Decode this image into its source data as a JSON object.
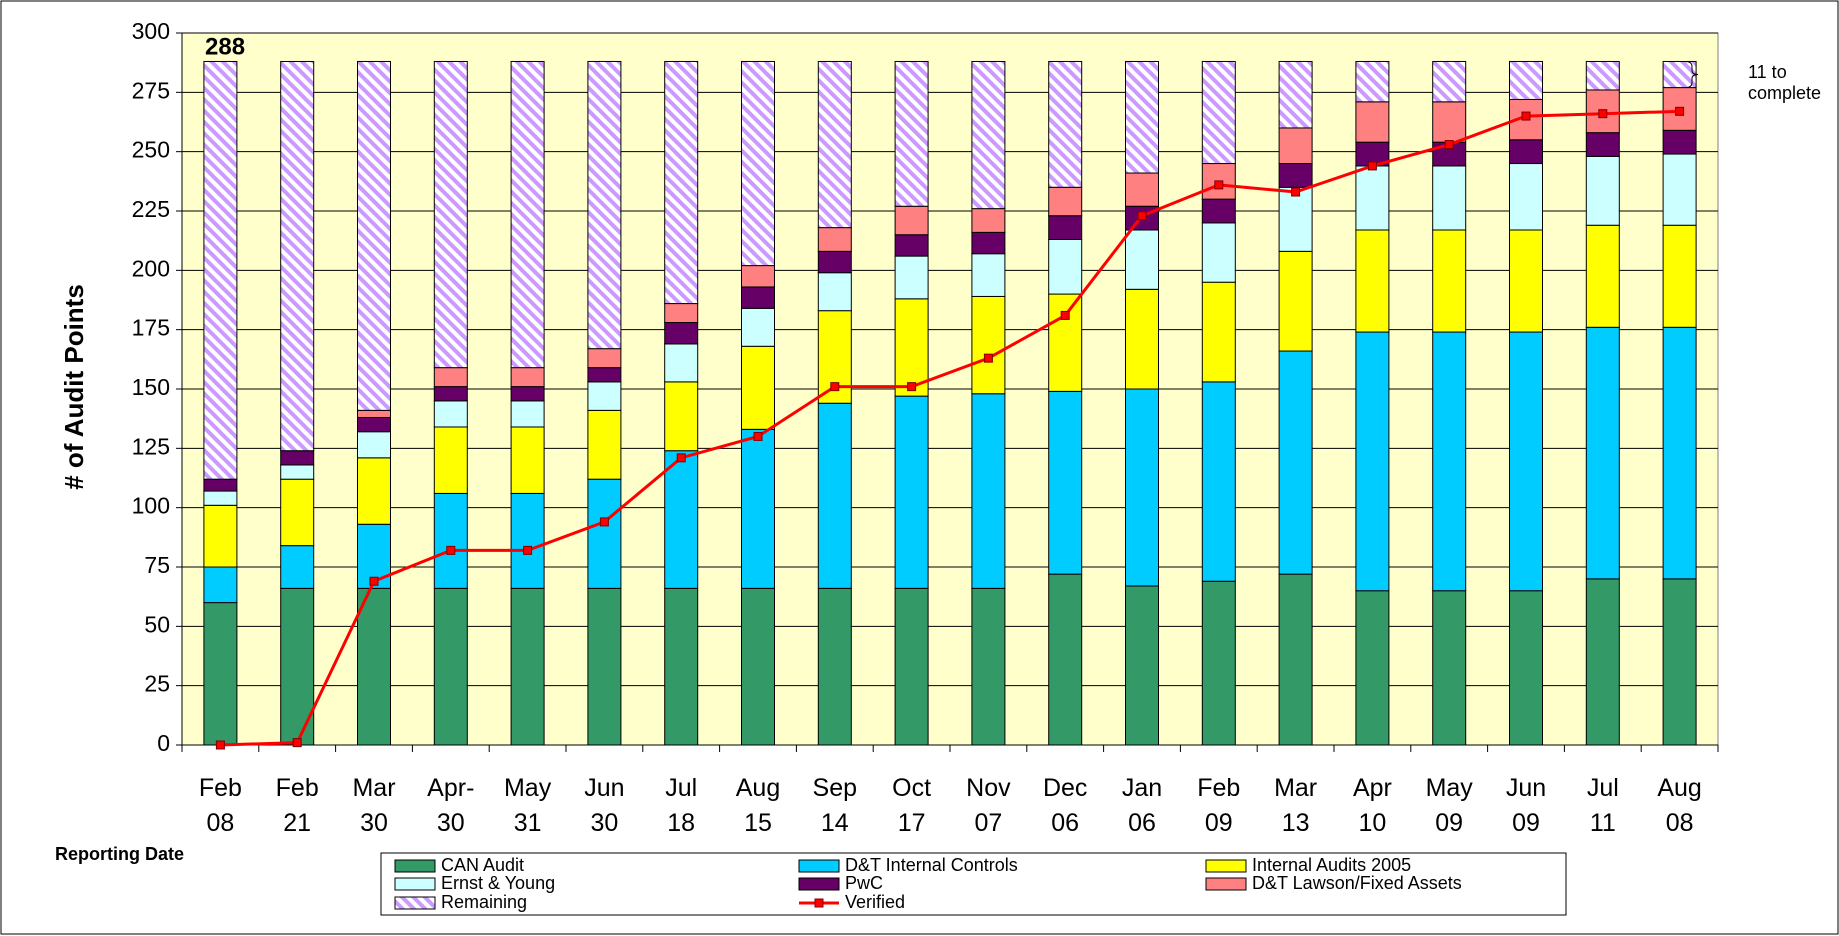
{
  "chart_data": {
    "type": "bar",
    "stacked": true,
    "y_label": "# of Audit Points",
    "x_label": "Reporting Date",
    "annotations": [
      "288",
      "11 to\ncomplete"
    ],
    "categories": [
      "Feb\n08",
      "Feb\n21",
      "Mar\n30",
      "Apr-\n30",
      "May\n31",
      "Jun\n30",
      "Jul\n18",
      "Aug\n15",
      "Sep\n14",
      "Oct\n17",
      "Nov\n07",
      "Dec\n06",
      "Jan\n06",
      "Feb\n09",
      "Mar\n13",
      "Apr\n10",
      "May\n09",
      "Jun\n09",
      "Jul\n11",
      "Aug\n08"
    ],
    "series": [
      {
        "name": "CAN Audit",
        "color": "#339966",
        "values": [
          60,
          66,
          66,
          66,
          66,
          66,
          66,
          66,
          66,
          66,
          66,
          72,
          67,
          69,
          72,
          65,
          65,
          65,
          70,
          70
        ]
      },
      {
        "name": "D&T Internal Controls",
        "color": "#00ccff",
        "values": [
          15,
          18,
          27,
          40,
          40,
          46,
          58,
          67,
          78,
          81,
          82,
          77,
          83,
          84,
          94,
          109,
          109,
          109,
          106,
          106
        ]
      },
      {
        "name": "Internal Audits 2005",
        "color": "#ffff00",
        "values": [
          26,
          28,
          28,
          28,
          28,
          29,
          29,
          35,
          39,
          41,
          41,
          41,
          42,
          42,
          42,
          43,
          43,
          43,
          43,
          43
        ]
      },
      {
        "name": "Ernst & Young",
        "color": "#ccffff",
        "values": [
          6,
          6,
          11,
          11,
          11,
          12,
          16,
          16,
          16,
          18,
          18,
          23,
          25,
          25,
          27,
          27,
          27,
          28,
          29,
          30
        ]
      },
      {
        "name": "PwC",
        "color": "#660066",
        "values": [
          5,
          6,
          6,
          6,
          6,
          6,
          9,
          9,
          9,
          9,
          9,
          10,
          10,
          10,
          10,
          10,
          10,
          10,
          10,
          10
        ]
      },
      {
        "name": "D&T Lawson/Fixed Assets",
        "color": "#ff8080",
        "values": [
          0,
          0,
          3,
          8,
          8,
          8,
          8,
          9,
          10,
          12,
          10,
          12,
          14,
          15,
          15,
          17,
          17,
          17,
          18,
          18
        ]
      },
      {
        "name": "Remaining",
        "color": "#cc99ff",
        "pattern": "hatch",
        "values": [
          176,
          164,
          147,
          129,
          129,
          121,
          102,
          86,
          70,
          61,
          62,
          53,
          47,
          43,
          28,
          17,
          17,
          16,
          12,
          11
        ]
      },
      {
        "name": "Verified",
        "color": "#ff0000",
        "type": "line",
        "values": [
          0,
          1,
          69,
          82,
          82,
          94,
          121,
          130,
          151,
          151,
          163,
          181,
          223,
          236,
          233,
          244,
          253,
          265,
          266,
          267
        ]
      }
    ],
    "ylim": [
      0,
      300
    ],
    "yticks": [
      0,
      25,
      50,
      75,
      100,
      125,
      150,
      175,
      200,
      225,
      250,
      275,
      300
    ],
    "grid": true
  }
}
